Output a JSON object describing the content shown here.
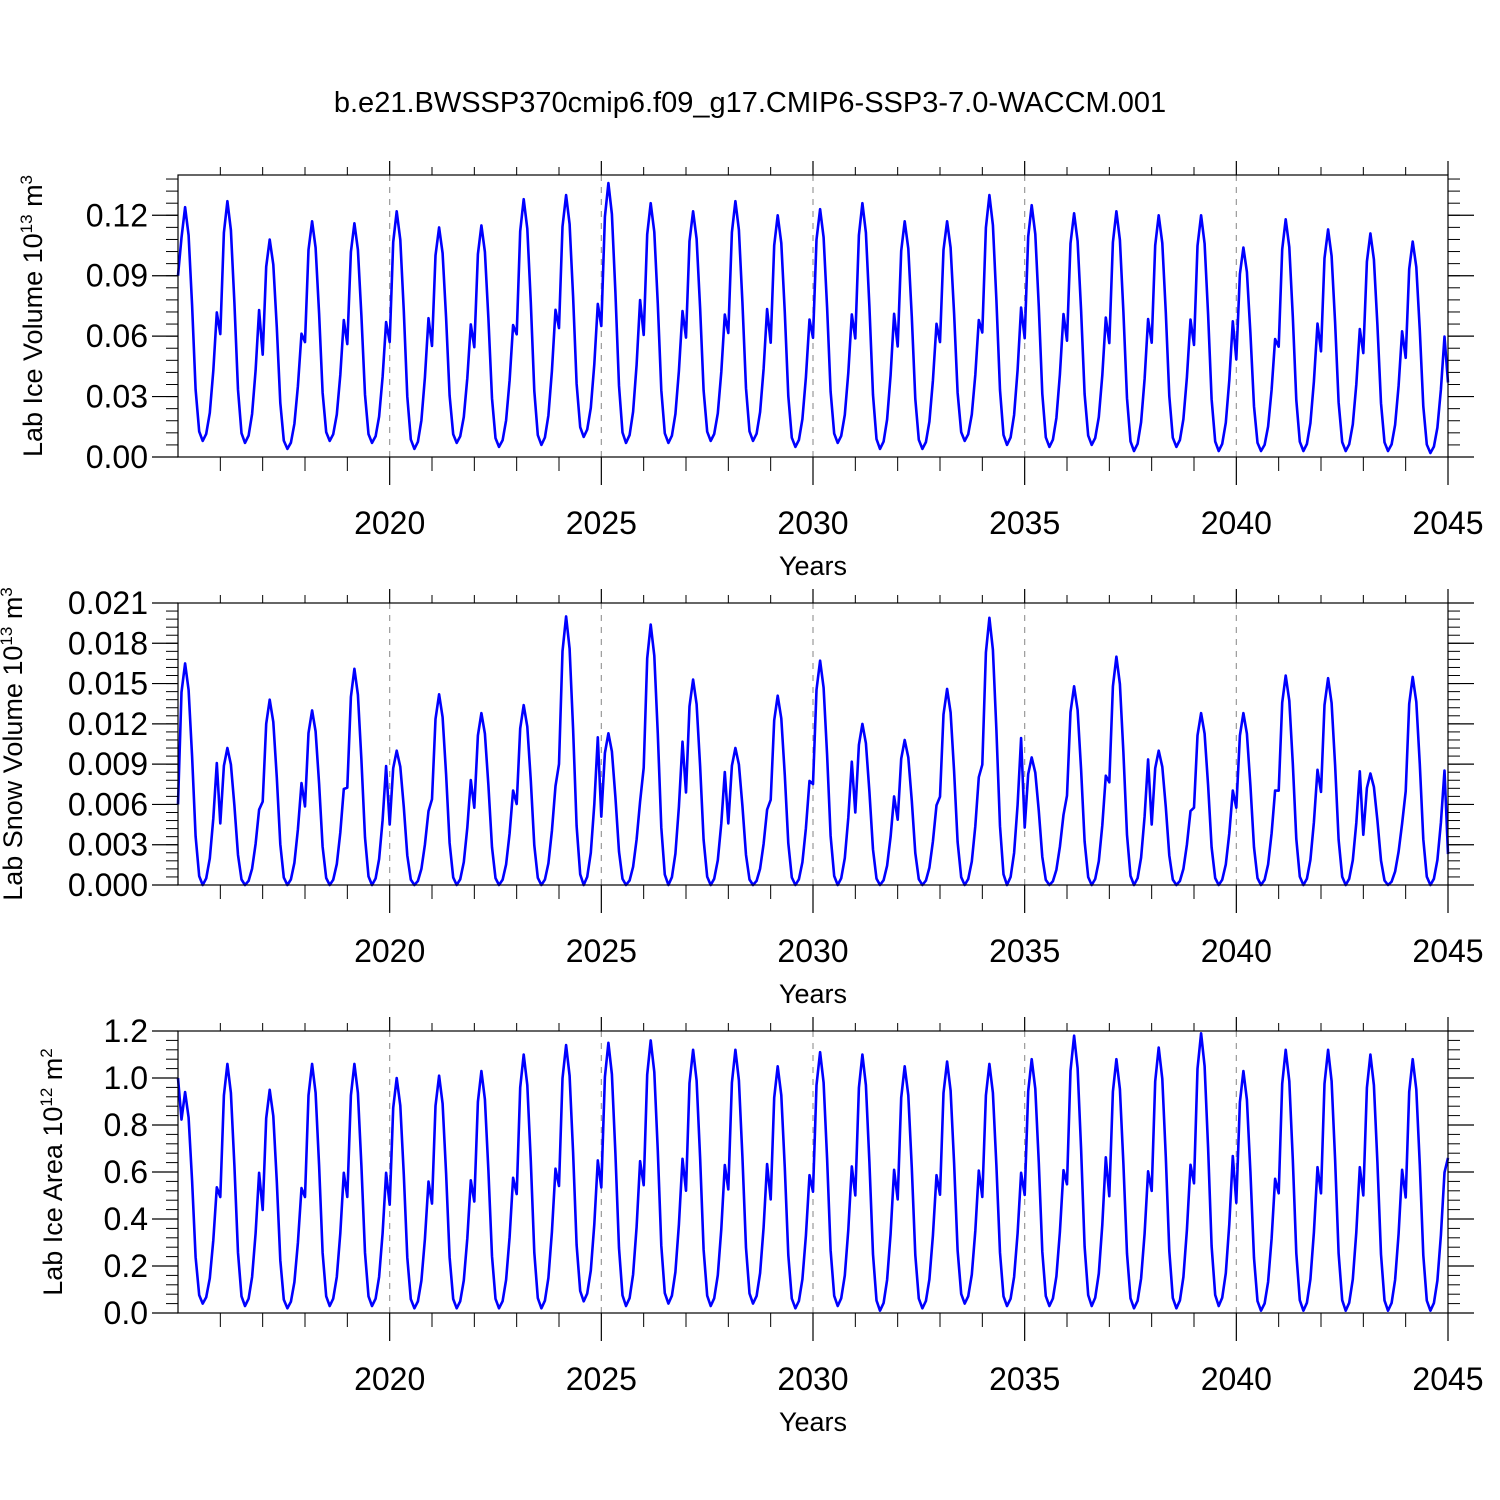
{
  "title": "b.e21.BWSSP370cmip6.f09_g17.CMIP6-SSP3-7.0-WACCM.001",
  "colors": {
    "series": "#0000ff",
    "grid": "#999999",
    "axes": "#000000"
  },
  "chart_data": [
    {
      "type": "line",
      "ylabel": "Lab Ice Volume 10",
      "ylabel_sup": "13",
      "ylabel_unit": " m",
      "ylabel_unit_sup": "3",
      "xlabel": "Years",
      "xlim": [
        2015,
        2045
      ],
      "ylim": [
        0.0,
        0.14
      ],
      "xticks": [
        2020,
        2025,
        2030,
        2035,
        2040,
        2045
      ],
      "xtick_labels": [
        "2020",
        "2025",
        "2030",
        "2035",
        "2040",
        "2045"
      ],
      "yticks": [
        0.0,
        0.03,
        0.06,
        0.09,
        0.12
      ],
      "ytick_labels": [
        "0.00",
        "0.03",
        "0.06",
        "0.09",
        "0.12"
      ],
      "y_minor_step": 0.006,
      "grid": "vertical dashed at major x ticks",
      "start_value": 0.09,
      "series": [
        {
          "peaks": [
            0.124,
            0.127,
            0.108,
            0.117,
            0.116,
            0.122,
            0.114,
            0.115,
            0.128,
            0.13,
            0.136,
            0.126,
            0.122,
            0.127,
            0.12,
            0.123,
            0.126,
            0.117,
            0.117,
            0.13,
            0.125,
            0.121,
            0.122,
            0.12,
            0.12,
            0.104,
            0.118,
            0.113,
            0.111,
            0.107
          ],
          "troughs": [
            0.008,
            0.007,
            0.004,
            0.008,
            0.007,
            0.004,
            0.007,
            0.005,
            0.006,
            0.01,
            0.007,
            0.007,
            0.008,
            0.008,
            0.005,
            0.007,
            0.004,
            0.004,
            0.008,
            0.006,
            0.005,
            0.006,
            0.003,
            0.005,
            0.003,
            0.003,
            0.003,
            0.003,
            0.003,
            0.002
          ],
          "end_value": 0.037
        }
      ]
    },
    {
      "type": "line",
      "ylabel": "Lab Snow Volume 10",
      "ylabel_sup": "13",
      "ylabel_unit": " m",
      "ylabel_unit_sup": "3",
      "xlabel": "Years",
      "xlim": [
        2015,
        2045
      ],
      "ylim": [
        0.0,
        0.021
      ],
      "xticks": [
        2020,
        2025,
        2030,
        2035,
        2040,
        2045
      ],
      "xtick_labels": [
        "2020",
        "2025",
        "2030",
        "2035",
        "2040",
        "2045"
      ],
      "yticks": [
        0.0,
        0.003,
        0.006,
        0.009,
        0.012,
        0.015,
        0.018,
        0.021
      ],
      "ytick_labels": [
        "0.000",
        "0.003",
        "0.006",
        "0.009",
        "0.012",
        "0.015",
        "0.018",
        "0.021"
      ],
      "y_minor_step": 0.0006,
      "grid": "vertical dashed at major x ticks",
      "start_value": 0.006,
      "series": [
        {
          "peaks": [
            0.0165,
            0.0102,
            0.0138,
            0.013,
            0.0161,
            0.01,
            0.0142,
            0.0128,
            0.0134,
            0.02,
            0.0113,
            0.0194,
            0.0153,
            0.0102,
            0.0141,
            0.0167,
            0.012,
            0.0108,
            0.0146,
            0.0199,
            0.0095,
            0.0148,
            0.017,
            0.01,
            0.0128,
            0.0128,
            0.0156,
            0.0154,
            0.0083,
            0.0155
          ],
          "troughs": [
            0.0,
            0.0,
            0.0,
            0.0,
            0.0,
            0.0,
            0.0,
            0.0,
            0.0,
            0.0,
            0.0,
            0.0,
            0.0,
            0.0,
            0.0,
            0.0,
            0.0,
            0.0,
            0.0,
            0.0,
            0.0,
            0.0,
            0.0,
            0.0,
            0.0,
            0.0,
            0.0,
            0.0,
            0.0,
            0.0
          ],
          "end_value": 0.0023
        }
      ]
    },
    {
      "type": "line",
      "ylabel": "Lab Ice Area 10",
      "ylabel_sup": "12",
      "ylabel_unit": " m",
      "ylabel_unit_sup": "2",
      "xlabel": "Years",
      "xlim": [
        2015,
        2045
      ],
      "ylim": [
        0.0,
        1.2
      ],
      "xticks": [
        2020,
        2025,
        2030,
        2035,
        2040,
        2045
      ],
      "xtick_labels": [
        "2020",
        "2025",
        "2030",
        "2035",
        "2040",
        "2045"
      ],
      "yticks": [
        0.0,
        0.2,
        0.4,
        0.6,
        0.8,
        1.0,
        1.2
      ],
      "ytick_labels": [
        "0.0",
        "0.2",
        "0.4",
        "0.6",
        "0.8",
        "1.0",
        "1.2"
      ],
      "y_minor_step": 0.04,
      "grid": "vertical dashed at major x ticks",
      "start_value": 1.0,
      "series": [
        {
          "peaks": [
            0.94,
            1.06,
            0.95,
            1.06,
            1.06,
            1.0,
            1.01,
            1.03,
            1.1,
            1.14,
            1.15,
            1.16,
            1.12,
            1.12,
            1.05,
            1.11,
            1.1,
            1.05,
            1.07,
            1.06,
            1.08,
            1.18,
            1.08,
            1.13,
            1.19,
            1.03,
            1.12,
            1.12,
            1.1,
            1.08
          ],
          "troughs": [
            0.04,
            0.03,
            0.02,
            0.03,
            0.03,
            0.02,
            0.02,
            0.02,
            0.02,
            0.05,
            0.03,
            0.04,
            0.03,
            0.04,
            0.02,
            0.03,
            0.01,
            0.02,
            0.04,
            0.03,
            0.03,
            0.03,
            0.02,
            0.02,
            0.03,
            0.01,
            0.01,
            0.01,
            0.01,
            0.01
          ],
          "end_value": 0.66
        }
      ]
    }
  ]
}
